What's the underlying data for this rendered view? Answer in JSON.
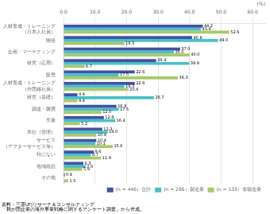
{
  "chart_data": {
    "type": "bar",
    "orientation": "horizontal",
    "categories": [
      "人材育成・トレーニング\n（日本人社員）",
      "開発",
      "企画・マーケティング",
      "研究（応用）",
      "販売",
      "人材育成・トレーニング\n（外国籍社員）",
      "研究（基礎）",
      "調達・購買",
      "生産",
      "本社（管理）",
      "サービス\n（アフターサービス等）",
      "特にない",
      "地域統括",
      "その他"
    ],
    "series": [
      {
        "name": "(n = 446）合計",
        "color": "#4055a0",
        "values": [
          44.2,
          40.8,
          37.0,
          29.4,
          22.6,
          22.6,
          4.4,
          16.8,
          12.8,
          12.3,
          10.4,
          9.6,
          6.3,
          0.4
        ],
        "value_labels": [
          "44.2",
          "40.8",
          "37.0",
          "29.4",
          "22.6",
          "22.6",
          "4.4",
          "16.8",
          "12.8",
          "12.3",
          "10.4",
          "9.6",
          "6.3",
          "0.4"
        ]
      },
      {
        "name": "(n = 286）製造業",
        "color": "#4bbfc8",
        "values": [
          43.6,
          49.0,
          35.0,
          39.9,
          17.5,
          19.3,
          28.7,
          17.5,
          16.4,
          14.0,
          10.1,
          8.7,
          7.0,
          0.0
        ],
        "value_labels": [
          "43.6",
          "49.0",
          "35.0",
          "39.9",
          "17.5",
          "19.3",
          "28.7",
          "17.5",
          "16.4",
          "14.0",
          "10.1",
          "8.7",
          "7.0",
          null
        ]
      },
      {
        "name": "(n = 135）非製造業",
        "color": "#a8c96a",
        "values": [
          52.6,
          19.3,
          40.0,
          6.7,
          36.3,
          20.6,
          4.4,
          12.0,
          5.2,
          10.4,
          15.6,
          11.9,
          5.9,
          1.5
        ],
        "value_labels": [
          "52.6",
          "19.3",
          "40.0",
          "6.7",
          "36.3",
          "20.6",
          "4.4",
          "12.0",
          "5.2",
          "10.4",
          "15.6",
          "11.9",
          "5.9",
          "1.5"
        ]
      }
    ],
    "xlim": [
      0,
      64
    ],
    "xticks": [
      {
        "value": 0,
        "label": "0.0"
      },
      {
        "value": 10,
        "label": "10.0"
      },
      {
        "value": 20,
        "label": "20.0"
      },
      {
        "value": 30,
        "label": "30.0"
      },
      {
        "value": 40,
        "label": "40.0"
      },
      {
        "value": 50,
        "label": "50.0"
      },
      {
        "value": 60,
        "label": "60.0"
      }
    ],
    "xlabel": "(%)",
    "annotations": [
      "資料：三菱UFJリサーチ＆コンサルティング",
      "「我が国企業の海外事業戦略に関するアンケート調査」から作成。"
    ],
    "grid": true,
    "legend": "lower right",
    "data_labels": true
  }
}
